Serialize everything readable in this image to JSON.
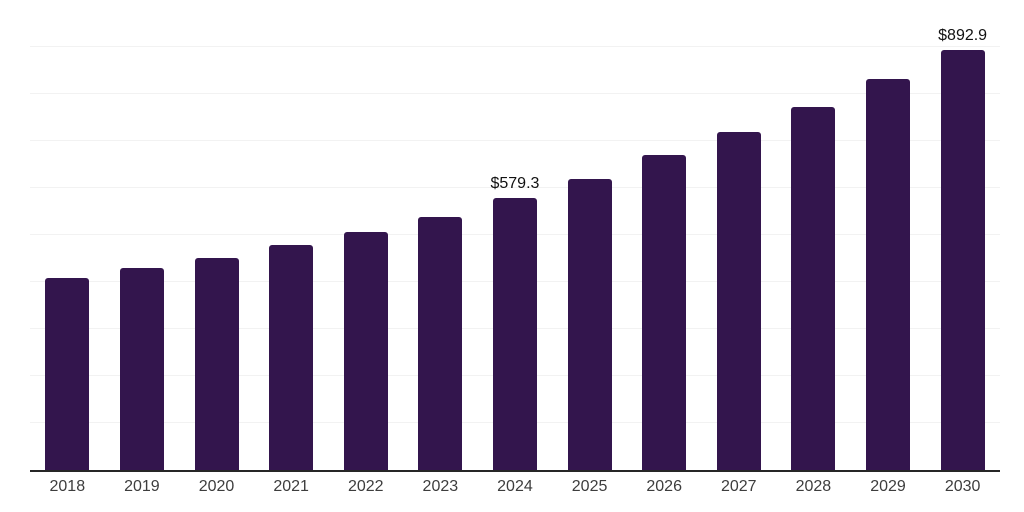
{
  "chart_data": {
    "type": "bar",
    "title": "",
    "xlabel": "",
    "ylabel": "",
    "categories": [
      "2018",
      "2019",
      "2020",
      "2021",
      "2022",
      "2023",
      "2024",
      "2025",
      "2026",
      "2027",
      "2028",
      "2029",
      "2030"
    ],
    "values": [
      408.4,
      429.8,
      451.1,
      478.7,
      506.4,
      538.3,
      579.3,
      619.1,
      670.2,
      719.1,
      772.3,
      831.9,
      892.9
    ],
    "data_labels": [
      "",
      "",
      "",
      "",
      "",
      "",
      "$579.3",
      "",
      "",
      "",
      "",
      "",
      "$892.9"
    ],
    "ylim": [
      0,
      1000
    ],
    "grid_step": 100,
    "grid": "horizontal",
    "legend": "none",
    "colors": {
      "bar": "#33154D",
      "axis": "#262626",
      "grid": "#f2f2f2",
      "tick_label": "#3d3d3d",
      "data_label": "#111111",
      "background": "#ffffff"
    }
  }
}
